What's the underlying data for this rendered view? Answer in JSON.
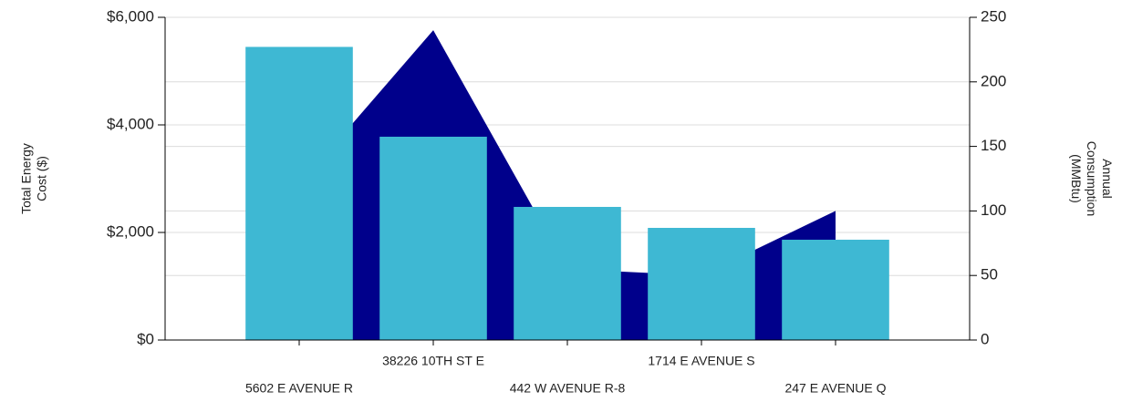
{
  "chart_data": {
    "type": "bar_area",
    "y_label": [
      "Total Energy",
      "Cost ($)"
    ],
    "y2_label": [
      "Annual",
      "Consumption",
      "(MMBtu)"
    ],
    "categories": [
      "5602 E AVENUE R",
      "38226 10TH ST E",
      "442 W AVENUE R-8",
      "1714 E AVENUE S",
      "247 E AVENUE Q"
    ],
    "series": [
      {
        "name": "Total Energy Cost",
        "type": "area",
        "axis": "y2",
        "color": "#00008b",
        "values": [
          120,
          240,
          55,
          50,
          100
        ]
      },
      {
        "name": "Total Energy Cost ($)",
        "type": "bar",
        "axis": "y",
        "color": "#3eb8d3",
        "values": [
          5450,
          3780,
          2475,
          2085,
          1865
        ]
      }
    ],
    "ylim": [
      0,
      6000
    ],
    "yticks": [
      {
        "value": 0,
        "label": "$0"
      },
      {
        "value": 2000,
        "label": "$2,000"
      },
      {
        "value": 4000,
        "label": "$4,000"
      },
      {
        "value": 6000,
        "label": "$6,000"
      }
    ],
    "y2lim": [
      0,
      250
    ],
    "y2ticks": [
      0,
      50,
      100,
      150,
      200,
      250
    ],
    "grid": true
  }
}
